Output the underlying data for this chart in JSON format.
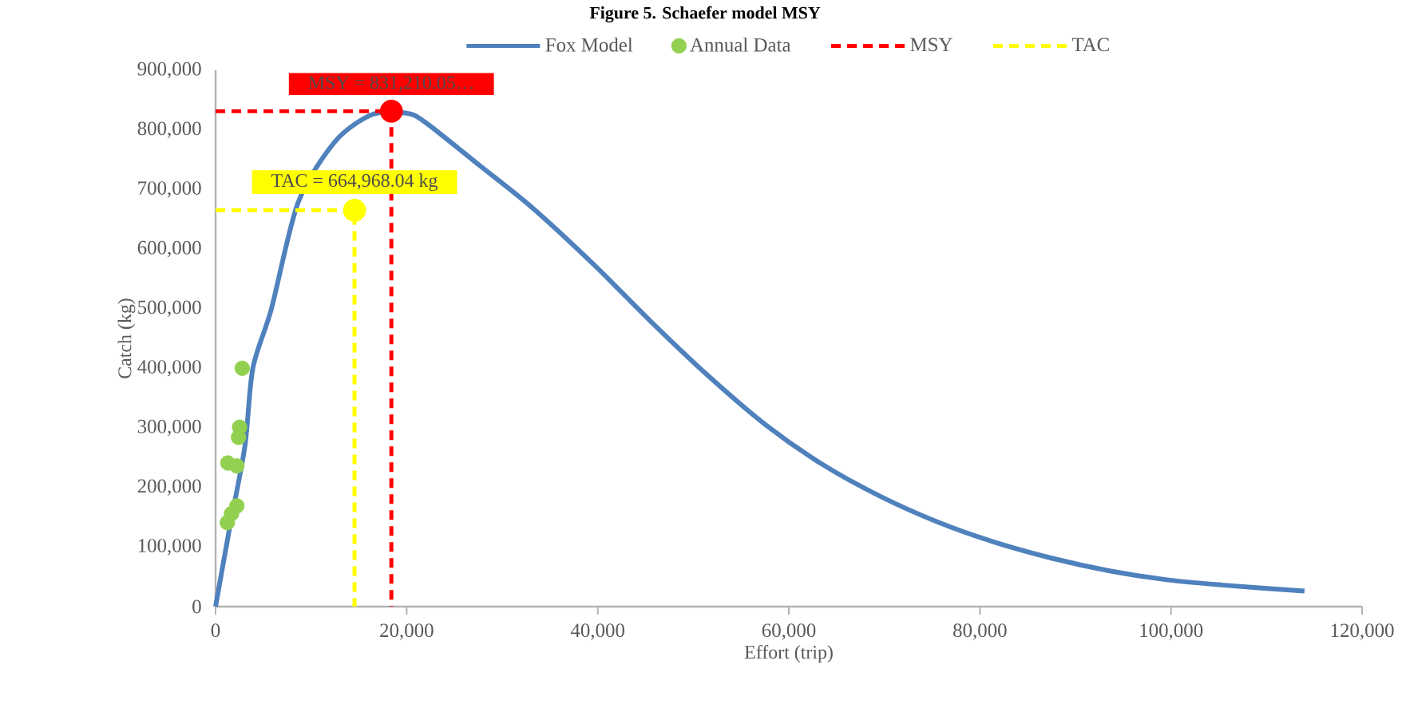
{
  "chart_data": {
    "type": "line",
    "title": "Figure 5. Schaefer model MSY",
    "xlabel": "Effort (trip)",
    "ylabel": "Catch (kg)",
    "xlim": [
      0,
      120000
    ],
    "ylim": [
      0,
      900000
    ],
    "xticks": [
      0,
      {
        "value": 20000,
        "label": "20,000"
      },
      {
        "value": 40000,
        "label": "40,000"
      },
      {
        "value": 60000,
        "label": "60,000"
      },
      {
        "value": 80000,
        "label": "80,000"
      },
      {
        "value": 100000,
        "label": "100,000"
      },
      {
        "value": 120000,
        "label": "120,000"
      }
    ],
    "yticks": [
      0,
      {
        "value": 100000,
        "label": "100,000"
      },
      {
        "value": 200000,
        "label": "200,000"
      },
      {
        "value": 300000,
        "label": "300,000"
      },
      {
        "value": 400000,
        "label": "400,000"
      },
      {
        "value": 500000,
        "label": "500,000"
      },
      {
        "value": 600000,
        "label": "600,000"
      },
      {
        "value": 700000,
        "label": "700,000"
      },
      {
        "value": 800000,
        "label": "800,000"
      },
      {
        "value": 900000,
        "label": "900,000"
      }
    ],
    "legend": "top",
    "series": [
      {
        "name": "Fox Model",
        "color": "#4f81bd",
        "marker": "none",
        "x": [
          0,
          1390,
          3060,
          3900,
          5850,
          8640,
          12540,
          16430,
          20000,
          22010,
          27580,
          33100,
          39580,
          45580,
          51580,
          57580,
          63580,
          69580,
          75580,
          81560,
          87580,
          93570,
          99560,
          105560,
          113970
        ],
        "values": [
          0,
          125000,
          268000,
          400000,
          500000,
          678000,
          781000,
          826000,
          828000,
          812000,
          741000,
          670000,
          574000,
          478000,
          387000,
          305000,
          238000,
          185000,
          142000,
          108000,
          81000,
          60000,
          45000,
          36000,
          26000
        ]
      },
      {
        "name": "Annual Data",
        "type": "scatter",
        "color": "#92d050",
        "marker": "circle",
        "x": [
          2790,
          2510,
          2400,
          1280,
          2230,
          2230,
          1670,
          1230
        ],
        "values": [
          400000,
          301000,
          284000,
          241000,
          236000,
          169000,
          156000,
          141000
        ]
      },
      {
        "name": "MSY",
        "color": "#ff0000",
        "marker": "none",
        "line_style": "dashed",
        "x": [
          0,
          18400,
          18400
        ],
        "values": [
          831210.05,
          831210.05,
          0
        ]
      },
      {
        "name": "TAC",
        "color": "#ffff00",
        "marker": "none",
        "line_style": "dashed",
        "x": [
          0,
          14540,
          14540
        ],
        "values": [
          664968.04,
          664968.04,
          0
        ]
      },
      {
        "type": "scatter",
        "color": "#ff0000",
        "marker": "circle",
        "x": [
          18400
        ],
        "values": [
          831210.05
        ]
      },
      {
        "type": "scatter",
        "color": "#ffff00",
        "marker": "circle",
        "x": [
          14540
        ],
        "values": [
          664968.04
        ]
      }
    ],
    "annotations": [
      {
        "text": "MSY = 831,210.05…",
        "x": 18400,
        "y": 831210.05
      },
      {
        "text": "TAC = 664,968.04  kg",
        "x": 14540,
        "y": 664968.04
      }
    ]
  }
}
